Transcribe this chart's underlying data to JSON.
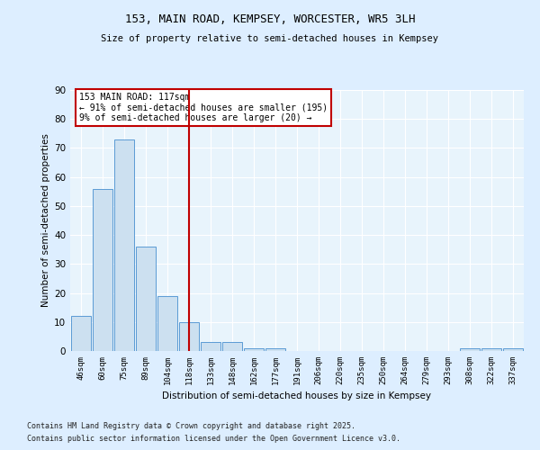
{
  "title1": "153, MAIN ROAD, KEMPSEY, WORCESTER, WR5 3LH",
  "title2": "Size of property relative to semi-detached houses in Kempsey",
  "xlabel": "Distribution of semi-detached houses by size in Kempsey",
  "ylabel": "Number of semi-detached properties",
  "categories": [
    "46sqm",
    "60sqm",
    "75sqm",
    "89sqm",
    "104sqm",
    "118sqm",
    "133sqm",
    "148sqm",
    "162sqm",
    "177sqm",
    "191sqm",
    "206sqm",
    "220sqm",
    "235sqm",
    "250sqm",
    "264sqm",
    "279sqm",
    "293sqm",
    "308sqm",
    "322sqm",
    "337sqm"
  ],
  "values": [
    12,
    56,
    73,
    36,
    19,
    10,
    3,
    3,
    1,
    1,
    0,
    0,
    0,
    0,
    0,
    0,
    0,
    0,
    1,
    1,
    1
  ],
  "bar_color": "#cce0f0",
  "bar_edge_color": "#5b9bd5",
  "vline_index": 5,
  "vline_color": "#c00000",
  "annotation_title": "153 MAIN ROAD: 117sqm",
  "annotation_line1": "← 91% of semi-detached houses are smaller (195)",
  "annotation_line2": "9% of semi-detached houses are larger (20) →",
  "annotation_box_color": "#c00000",
  "ylim": [
    0,
    90
  ],
  "yticks": [
    0,
    10,
    20,
    30,
    40,
    50,
    60,
    70,
    80,
    90
  ],
  "footer1": "Contains HM Land Registry data © Crown copyright and database right 2025.",
  "footer2": "Contains public sector information licensed under the Open Government Licence v3.0.",
  "bg_color": "#ddeeff",
  "plot_bg": "#e8f4fc"
}
